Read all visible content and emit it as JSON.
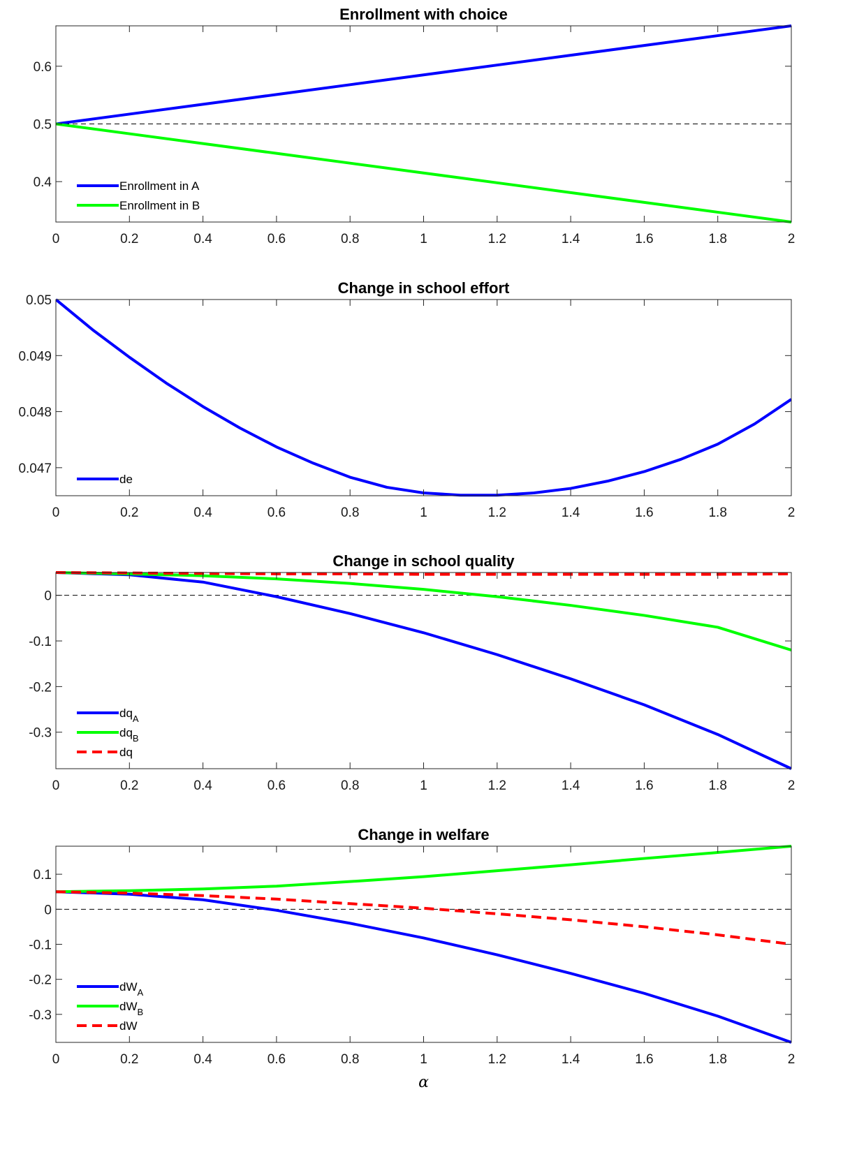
{
  "chart_data": [
    {
      "type": "line",
      "title": "Enrollment with choice",
      "xlim": [
        0,
        2
      ],
      "ylim": [
        0.33,
        0.67
      ],
      "xticks": [
        "0",
        "0.2",
        "0.4",
        "0.6",
        "0.8",
        "1",
        "1.2",
        "1.4",
        "1.6",
        "1.8",
        "2"
      ],
      "yticks": [
        "0.4",
        "0.5",
        "0.6"
      ],
      "reference_line": 0.5,
      "legend_position": "lower-left",
      "series": [
        {
          "name": "Enrollment in A",
          "sub": "",
          "color": "#0000ff",
          "dashed": false,
          "x": [
            0,
            0.2,
            0.4,
            0.6,
            0.8,
            1.0,
            1.2,
            1.4,
            1.6,
            1.8,
            2.0
          ],
          "y": [
            0.5,
            0.517,
            0.534,
            0.551,
            0.568,
            0.585,
            0.602,
            0.619,
            0.636,
            0.653,
            0.67
          ]
        },
        {
          "name": "Enrollment in B",
          "sub": "",
          "color": "#00ff00",
          "dashed": false,
          "x": [
            0,
            0.2,
            0.4,
            0.6,
            0.8,
            1.0,
            1.2,
            1.4,
            1.6,
            1.8,
            2.0
          ],
          "y": [
            0.5,
            0.483,
            0.466,
            0.449,
            0.432,
            0.415,
            0.398,
            0.381,
            0.364,
            0.347,
            0.33
          ]
        }
      ]
    },
    {
      "type": "line",
      "title": "Change in school effort",
      "xlim": [
        0,
        2
      ],
      "ylim": [
        0.0465,
        0.05
      ],
      "xticks": [
        "0",
        "0.2",
        "0.4",
        "0.6",
        "0.8",
        "1",
        "1.2",
        "1.4",
        "1.6",
        "1.8",
        "2"
      ],
      "yticks": [
        "0.047",
        "0.048",
        "0.049",
        "0.05"
      ],
      "legend_position": "lower-left",
      "series": [
        {
          "name": "de",
          "sub": "",
          "color": "#0000ff",
          "dashed": false,
          "x": [
            0,
            0.1,
            0.2,
            0.3,
            0.4,
            0.5,
            0.6,
            0.7,
            0.8,
            0.9,
            1.0,
            1.1,
            1.2,
            1.3,
            1.4,
            1.5,
            1.6,
            1.7,
            1.8,
            1.9,
            2.0
          ],
          "y": [
            0.05,
            0.04946,
            0.04897,
            0.04851,
            0.04809,
            0.04771,
            0.04737,
            0.04708,
            0.04683,
            0.04665,
            0.04655,
            0.04651,
            0.04651,
            0.04655,
            0.04663,
            0.04676,
            0.04693,
            0.04715,
            0.04742,
            0.04778,
            0.04822
          ]
        }
      ]
    },
    {
      "type": "line",
      "title": "Change in school quality",
      "xlim": [
        0,
        2
      ],
      "ylim": [
        -0.38,
        0.05
      ],
      "xticks": [
        "0",
        "0.2",
        "0.4",
        "0.6",
        "0.8",
        "1",
        "1.2",
        "1.4",
        "1.6",
        "1.8",
        "2"
      ],
      "yticks": [
        "-0.3",
        "-0.2",
        "-0.1",
        "0"
      ],
      "reference_line": 0,
      "legend_position": "lower-left",
      "series": [
        {
          "name": "dq",
          "sub": "A",
          "color": "#0000ff",
          "dashed": false,
          "x": [
            0,
            0.2,
            0.4,
            0.6,
            0.8,
            1.0,
            1.2,
            1.4,
            1.6,
            1.8,
            2.0
          ],
          "y": [
            0.05,
            0.045,
            0.029,
            -0.003,
            -0.04,
            -0.082,
            -0.13,
            -0.183,
            -0.24,
            -0.305,
            -0.38
          ]
        },
        {
          "name": "dq",
          "sub": "B",
          "color": "#00ff00",
          "dashed": false,
          "x": [
            0,
            0.2,
            0.4,
            0.6,
            0.8,
            1.0,
            1.2,
            1.4,
            1.6,
            1.8,
            2.0
          ],
          "y": [
            0.05,
            0.047,
            0.043,
            0.036,
            0.026,
            0.013,
            -0.003,
            -0.022,
            -0.044,
            -0.07,
            -0.12
          ]
        },
        {
          "name": "dq",
          "sub": "",
          "color": "#ff0000",
          "dashed": true,
          "x": [
            0,
            0.2,
            0.4,
            0.6,
            0.8,
            1.0,
            1.2,
            1.4,
            1.6,
            1.8,
            2.0
          ],
          "y": [
            0.05,
            0.049,
            0.048,
            0.047,
            0.047,
            0.046,
            0.046,
            0.046,
            0.046,
            0.046,
            0.047
          ]
        }
      ]
    },
    {
      "type": "line",
      "title": "Change in welfare",
      "xlim": [
        0,
        2
      ],
      "ylim": [
        -0.38,
        0.18
      ],
      "xticks": [
        "0",
        "0.2",
        "0.4",
        "0.6",
        "0.8",
        "1",
        "1.2",
        "1.4",
        "1.6",
        "1.8",
        "2"
      ],
      "yticks": [
        "-0.3",
        "-0.2",
        "-0.1",
        "0",
        "0.1"
      ],
      "xlabel": "α",
      "reference_line": 0,
      "legend_position": "lower-left",
      "series": [
        {
          "name": "dW",
          "sub": "A",
          "color": "#0000ff",
          "dashed": false,
          "x": [
            0,
            0.2,
            0.4,
            0.6,
            0.8,
            1.0,
            1.2,
            1.4,
            1.6,
            1.8,
            2.0
          ],
          "y": [
            0.05,
            0.043,
            0.027,
            -0.003,
            -0.04,
            -0.082,
            -0.13,
            -0.183,
            -0.24,
            -0.305,
            -0.38
          ]
        },
        {
          "name": "dW",
          "sub": "B",
          "color": "#00ff00",
          "dashed": false,
          "x": [
            0,
            0.2,
            0.4,
            0.6,
            0.8,
            1.0,
            1.2,
            1.4,
            1.6,
            1.8,
            2.0
          ],
          "y": [
            0.05,
            0.053,
            0.058,
            0.066,
            0.079,
            0.093,
            0.11,
            0.127,
            0.145,
            0.162,
            0.18
          ]
        },
        {
          "name": "dW",
          "sub": "",
          "color": "#ff0000",
          "dashed": true,
          "x": [
            0,
            0.2,
            0.4,
            0.6,
            0.8,
            1.0,
            1.2,
            1.4,
            1.6,
            1.8,
            2.0
          ],
          "y": [
            0.05,
            0.046,
            0.039,
            0.029,
            0.016,
            0.003,
            -0.013,
            -0.03,
            -0.05,
            -0.073,
            -0.1
          ]
        }
      ]
    }
  ]
}
